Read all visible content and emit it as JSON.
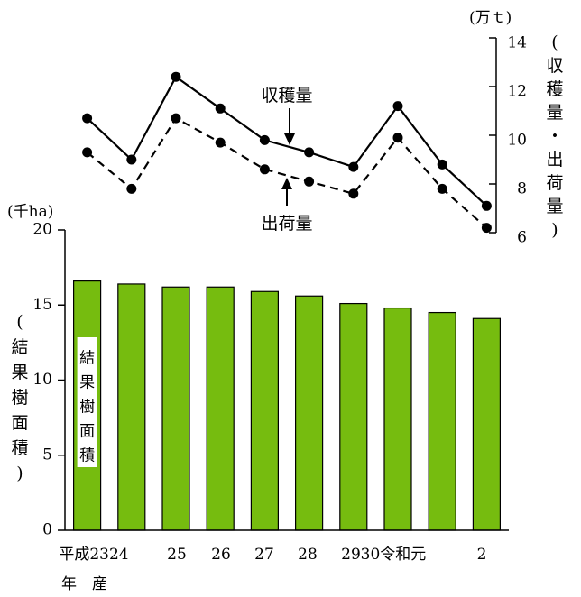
{
  "chart_data": {
    "type": "bar+line",
    "categories": [
      "平成23",
      "24",
      "25",
      "26",
      "27",
      "28",
      "29",
      "30",
      "令和元",
      "2"
    ],
    "x_tick_labels": [
      "平成2324",
      "25",
      "26",
      "27",
      "28",
      "29",
      "30令和元",
      "2"
    ],
    "x_label": "年　産",
    "bar": {
      "name": "結果樹面積",
      "unit": "(千ha)",
      "axis_label": "(結果樹面積)",
      "values": [
        16.6,
        16.4,
        16.2,
        16.2,
        15.9,
        15.6,
        15.1,
        14.8,
        14.5,
        14.1
      ],
      "ylim": [
        0,
        20
      ],
      "ticks": [
        "0",
        "5",
        "10",
        "15",
        "20"
      ],
      "color": "#76bc0f"
    },
    "lines": {
      "unit": "(万ｔ)",
      "axis_label": "(収穫量・出荷量)",
      "ylim": [
        6,
        14
      ],
      "ticks": [
        "6",
        "8",
        "10",
        "12",
        "14"
      ],
      "series": [
        {
          "name": "収穫量",
          "style": "solid",
          "values": [
            10.7,
            9.0,
            12.4,
            11.1,
            9.8,
            9.3,
            8.7,
            11.2,
            8.8,
            7.1
          ]
        },
        {
          "name": "出荷量",
          "style": "dashed",
          "values": [
            9.3,
            7.8,
            10.7,
            9.7,
            8.6,
            8.1,
            7.6,
            9.9,
            7.8,
            6.2
          ]
        }
      ]
    }
  }
}
